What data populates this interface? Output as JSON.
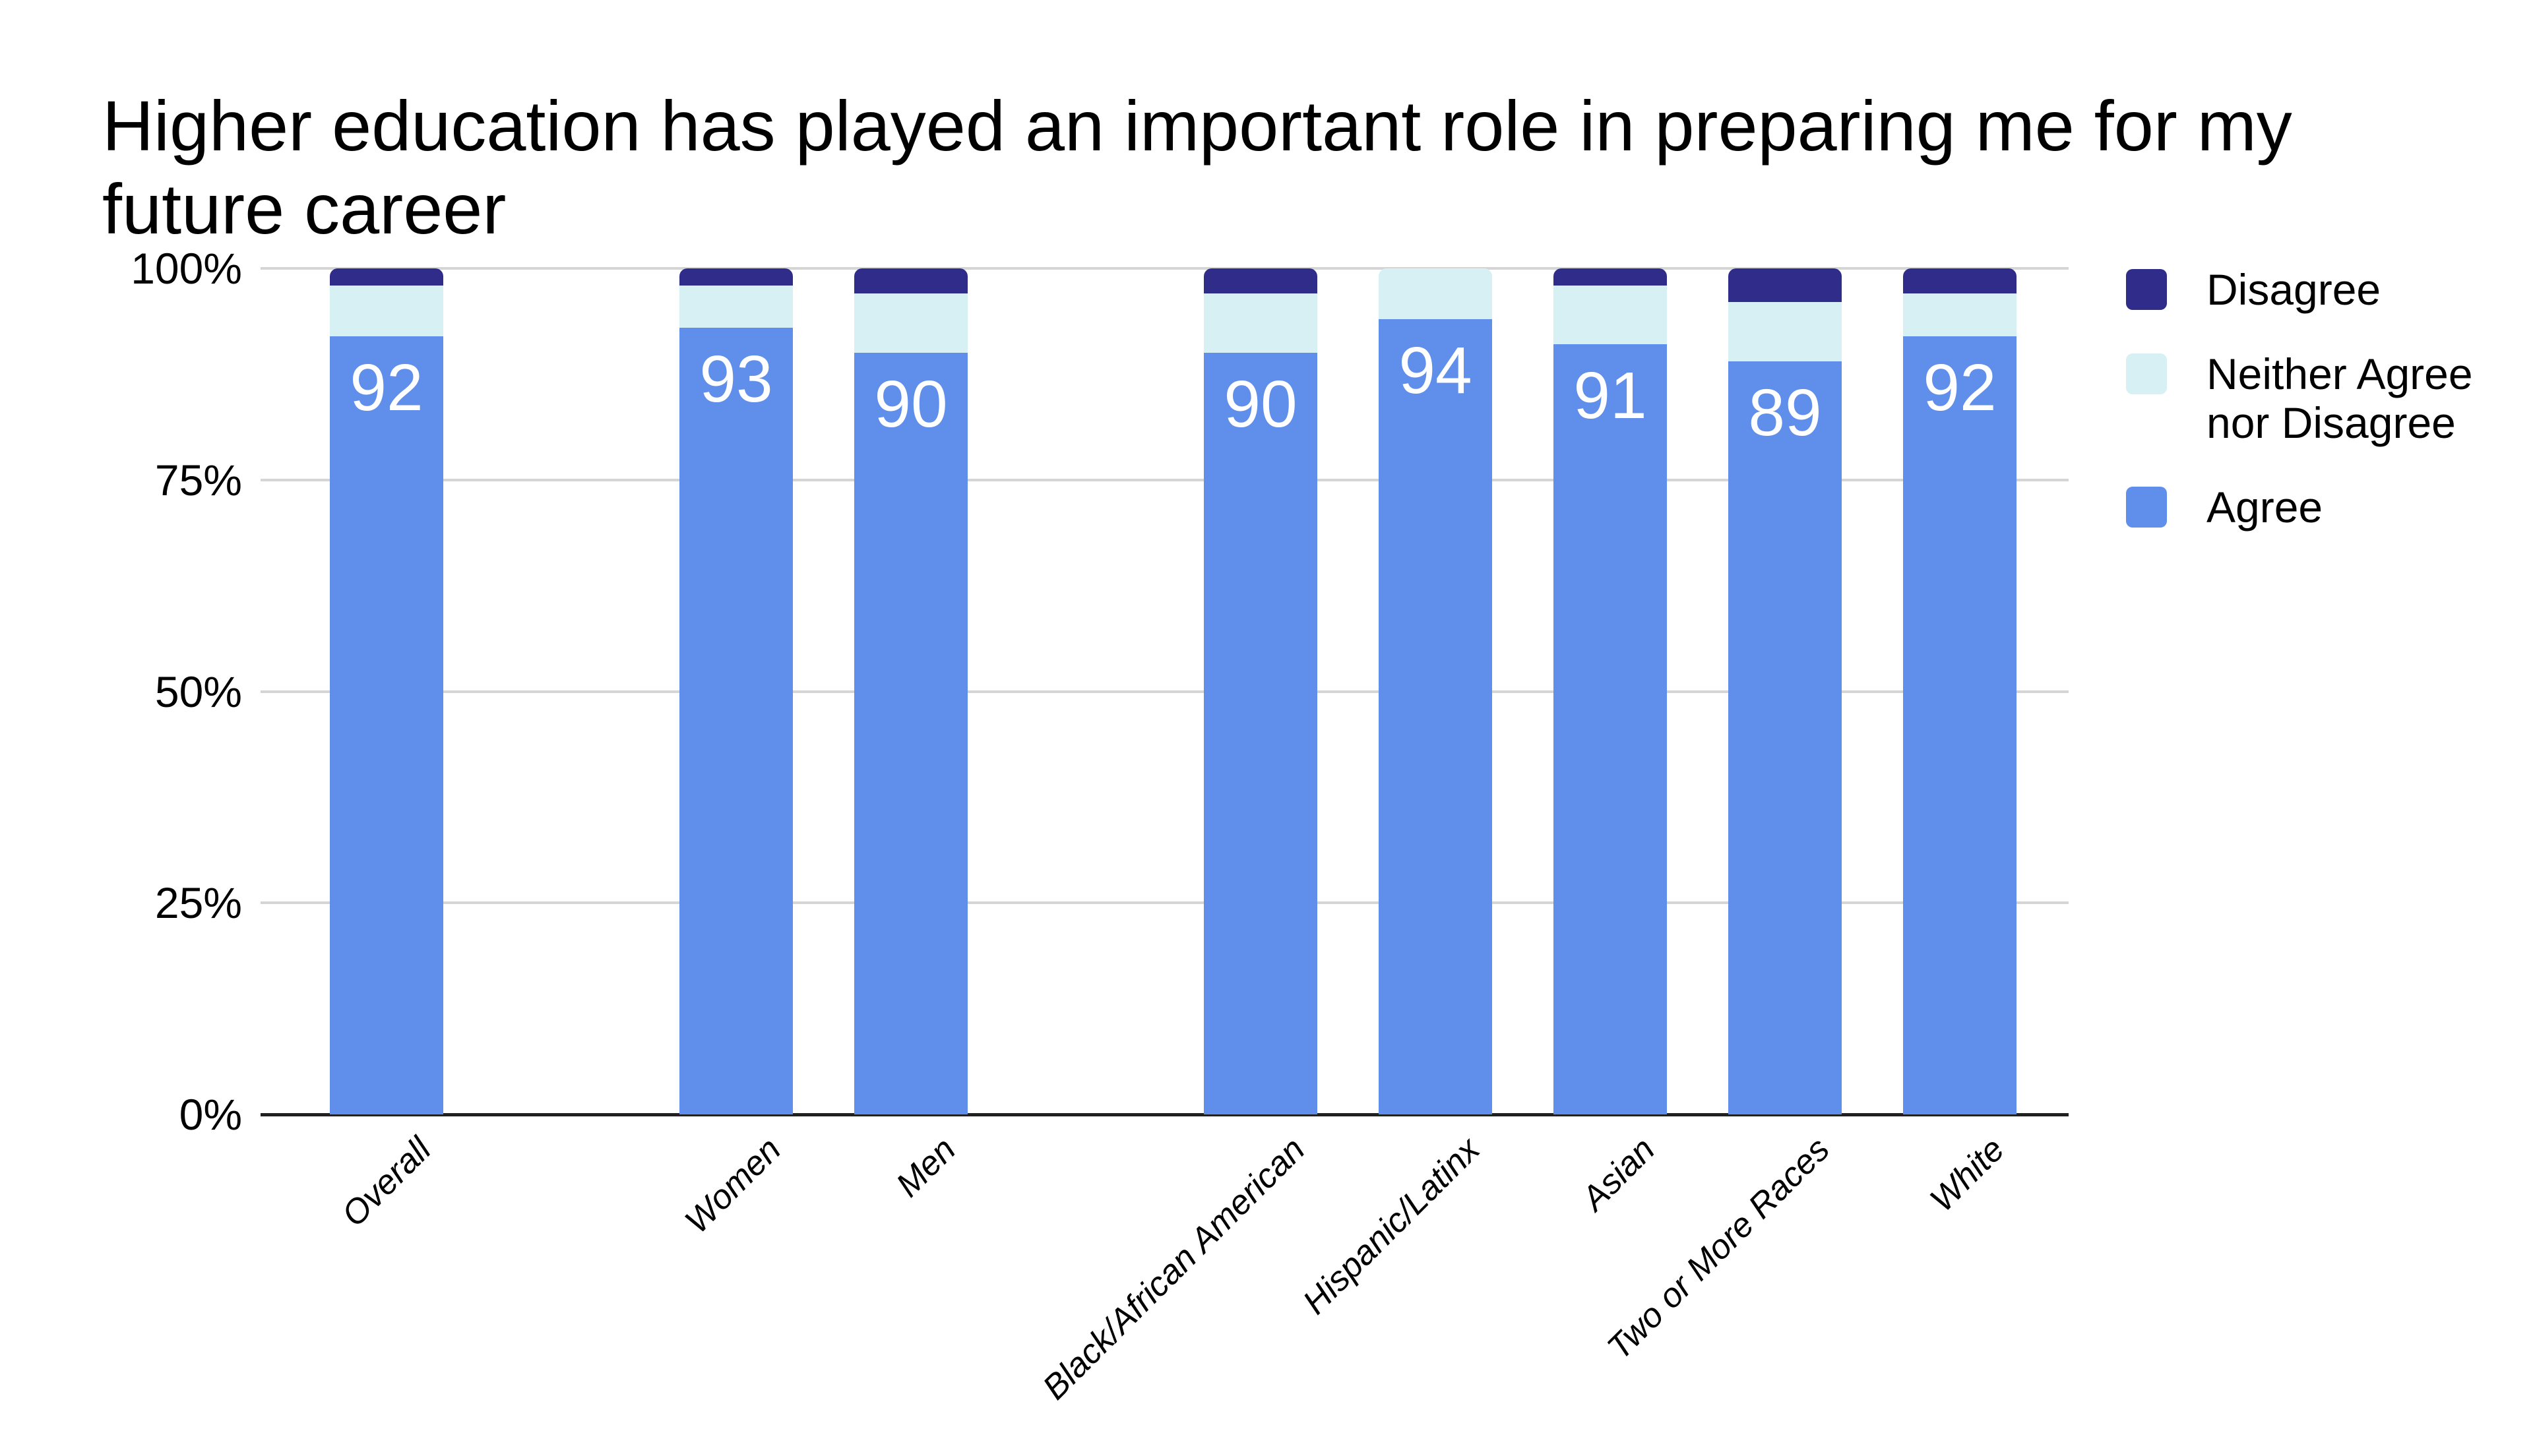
{
  "chart_data": {
    "type": "bar",
    "stacked": true,
    "percent_axis": true,
    "title": "Higher education has played an important role in preparing me for my future career",
    "title_lines": [
      "Higher education has played an important role in preparing me for my",
      "future career"
    ],
    "categories": [
      "Overall",
      "Women",
      "Men",
      "Black/African American",
      "Hispanic/Latinx",
      "Asian",
      "Two or More Races",
      "White"
    ],
    "series": [
      {
        "name": "Agree",
        "color": "#5F8EEB",
        "values": [
          92,
          93,
          90,
          90,
          94,
          91,
          89,
          92
        ]
      },
      {
        "name": "Neither Agree nor Disagree",
        "color": "#D7F0F3",
        "values": [
          6,
          5,
          7,
          7,
          6,
          7,
          7,
          5
        ]
      },
      {
        "name": "Disagree",
        "color": "#302C8A",
        "values": [
          2,
          2,
          3,
          3,
          0,
          2,
          4,
          3
        ]
      }
    ],
    "bar_labels": {
      "series": "Agree",
      "values": [
        "92",
        "93",
        "90",
        "90",
        "94",
        "91",
        "89",
        "92"
      ],
      "color": "#FFFFFF"
    },
    "y_ticks": [
      {
        "label": "100%",
        "value": 100
      },
      {
        "label": "75%",
        "value": 75
      },
      {
        "label": "50%",
        "value": 50
      },
      {
        "label": "25%",
        "value": 25
      },
      {
        "label": "0%",
        "value": 0
      }
    ],
    "ylim": [
      0,
      100
    ],
    "grid": "horizontal",
    "x_label_style": {
      "rotation_deg": -45,
      "italic": true
    },
    "category_groups": [
      [
        "Overall"
      ],
      [
        "Women",
        "Men"
      ],
      [
        "Black/African American",
        "Hispanic/Latinx",
        "Asian",
        "Two or More Races",
        "White"
      ]
    ],
    "legend": {
      "position": "right",
      "items": [
        {
          "label": "Disagree",
          "color": "#302C8A"
        },
        {
          "label": "Neither Agree nor Disagree",
          "color": "#D7F0F3"
        },
        {
          "label": "Agree",
          "color": "#5F8EEB"
        }
      ]
    }
  }
}
